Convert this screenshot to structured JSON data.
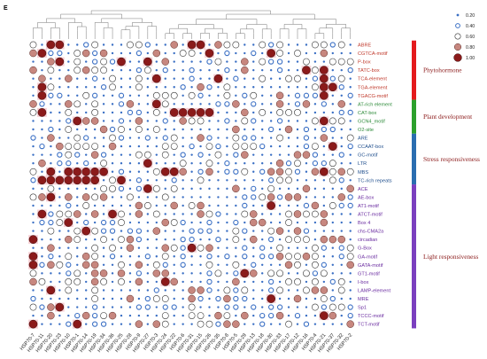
{
  "panel_label": "E",
  "chart_data": {
    "type": "bubble-heatmap",
    "columns": [
      "HSP70-7",
      "HSP70-11",
      "HSP70-20",
      "HSP70-23",
      "HSP70-10",
      "HSP70-1",
      "HSP70-14",
      "HSP70-19",
      "HSP70-34",
      "HSP70-36",
      "HSP70-25",
      "HSP70-28",
      "HSP70-9",
      "HSP70-27",
      "HSP70-3",
      "HSP70-24",
      "HSP70-22",
      "HSP70-6",
      "HSP70-31",
      "HSP70-15",
      "HSP70-26",
      "HSP70-35",
      "HSP70-8",
      "HSP70-5",
      "HSP70-29",
      "HSP70-13",
      "HSP70-18",
      "HSP70-30",
      "HSP70-33",
      "HSP70-17",
      "HSP70-12",
      "HSP70-16",
      "HSP70-4",
      "HSP70-21",
      "HSP70-37",
      "HSP70-32",
      "HSP70-2"
    ],
    "rows": [
      "ABRE",
      "CGTCA-motif",
      "P-box",
      "TATC-box",
      "TCA-element",
      "TGA-element",
      "TGACG-motif",
      "AT-rich element",
      "CAT-box",
      "GCN4_motif",
      "O2-site",
      "ARE",
      "CCAAT-box",
      "GC-motif",
      "LTR",
      "MBS",
      "TC-rich repeats",
      "ACE",
      "AE-box",
      "AT1-motif",
      "ATCT-motif",
      "Box 4",
      "chs-CMA2a",
      "circadian",
      "G-Box",
      "GA-motif",
      "GATA-motif",
      "GT1-motif",
      "I-box",
      "LAMP-element",
      "MRE",
      "Sp1",
      "TCCC-motif",
      "TCT-motif"
    ],
    "row_colors": [
      "#c0392b",
      "#c0392b",
      "#c0392b",
      "#c0392b",
      "#c0392b",
      "#c0392b",
      "#c0392b",
      "#2e8b3a",
      "#2e8b3a",
      "#2e8b3a",
      "#2e8b3a",
      "#1f4e8c",
      "#1f4e8c",
      "#1f4e8c",
      "#1f4e8c",
      "#1f4e8c",
      "#1f4e8c",
      "#6a2ca0",
      "#6a2ca0",
      "#6a2ca0",
      "#6a2ca0",
      "#6a2ca0",
      "#6a2ca0",
      "#6a2ca0",
      "#6a2ca0",
      "#6a2ca0",
      "#6a2ca0",
      "#6a2ca0",
      "#6a2ca0",
      "#6a2ca0",
      "#6a2ca0",
      "#6a2ca0",
      "#6a2ca0",
      "#6a2ca0"
    ],
    "groups": [
      {
        "name": "Phytohormone",
        "start": 0,
        "end": 6,
        "color": "#e41a1c"
      },
      {
        "name": "Plant development",
        "start": 7,
        "end": 10,
        "color": "#2ca02c"
      },
      {
        "name": "Stress responsiveness",
        "start": 11,
        "end": 16,
        "color": "#2a6db0"
      },
      {
        "name": "Light responsiveness",
        "start": 17,
        "end": 33,
        "color": "#7b3fbf"
      }
    ],
    "legend": {
      "position": "top-right",
      "values": [
        0.2,
        0.4,
        0.6,
        0.8,
        1.0
      ],
      "labels": [
        "0.20",
        "0.40",
        "0.60",
        "0.80",
        "1.00"
      ]
    },
    "colors": {
      "low": "#3a6fc4",
      "mid": "#ffffff",
      "high": "#8b1a1a"
    },
    "highlights": [
      {
        "row": "ABRE",
        "cols": [
          "HSP70-20",
          "HSP70-23",
          "HSP70-31",
          "HSP70-15"
        ]
      },
      {
        "row": "CGTCA-motif",
        "cols": [
          "HSP70-11",
          "HSP70-26",
          "HSP70-30"
        ]
      },
      {
        "row": "P-box",
        "cols": [
          "HSP70-23",
          "HSP70-25",
          "HSP70-27"
        ]
      },
      {
        "row": "TATC-box",
        "cols": [
          "HSP70-16",
          "HSP70-21"
        ]
      },
      {
        "row": "TCA-element",
        "cols": [
          "HSP70-3",
          "HSP70-35",
          "HSP70-21"
        ]
      },
      {
        "row": "TGA-element",
        "cols": [
          "HSP70-11",
          "HSP70-21",
          "HSP70-37"
        ]
      },
      {
        "row": "TGACG-motif",
        "cols": [
          "HSP70-11",
          "HSP70-21"
        ]
      },
      {
        "row": "AT-rich element",
        "cols": [
          "HSP70-3"
        ]
      },
      {
        "row": "CAT-box",
        "cols": [
          "HSP70-11",
          "HSP70-22",
          "HSP70-6",
          "HSP70-31",
          "HSP70-15",
          "HSP70-26"
        ]
      },
      {
        "row": "GCN4_motif",
        "cols": [
          "HSP70-1",
          "HSP70-21"
        ]
      },
      {
        "row": "CCAAT-box",
        "cols": [
          "HSP70-37"
        ]
      },
      {
        "row": "LTR",
        "cols": [
          "HSP70-27"
        ]
      },
      {
        "row": "MBS",
        "cols": [
          "HSP70-20",
          "HSP70-10",
          "HSP70-1",
          "HSP70-14",
          "HSP70-19",
          "HSP70-34",
          "HSP70-24",
          "HSP70-22",
          "HSP70-21"
        ]
      },
      {
        "row": "TC-rich repeats",
        "cols": [
          "HSP70-11",
          "HSP70-20",
          "HSP70-23",
          "HSP70-10",
          "HSP70-1",
          "HSP70-14",
          "HSP70-19",
          "HSP70-25"
        ]
      },
      {
        "row": "ACE",
        "cols": [
          "HSP70-27"
        ]
      },
      {
        "row": "AE-box",
        "cols": [
          "HSP70-20"
        ]
      },
      {
        "row": "AT1-motif",
        "cols": [
          "HSP70-30"
        ]
      },
      {
        "row": "ATCT-motif",
        "cols": [
          "HSP70-11",
          "HSP70-36"
        ]
      },
      {
        "row": "Box 4",
        "cols": [
          "HSP70-10"
        ]
      },
      {
        "row": "chs-CMA2a",
        "cols": [
          "HSP70-14"
        ]
      },
      {
        "row": "circadian",
        "cols": [
          "HSP70-7"
        ]
      },
      {
        "row": "G-Box",
        "cols": [
          "HSP70-31"
        ]
      },
      {
        "row": "GA-motif",
        "cols": [
          "HSP70-7"
        ]
      },
      {
        "row": "GATA-motif",
        "cols": [
          "HSP70-7"
        ]
      },
      {
        "row": "GT1-motif",
        "cols": [
          "HSP70-29"
        ]
      },
      {
        "row": "I-box",
        "cols": [
          "HSP70-24"
        ]
      },
      {
        "row": "LAMP-element",
        "cols": [
          "HSP70-20"
        ]
      },
      {
        "row": "MRE",
        "cols": [
          "HSP70-30"
        ]
      },
      {
        "row": "Sp1",
        "cols": [
          "HSP70-23"
        ]
      },
      {
        "row": "TCCC-motif",
        "cols": [
          "HSP70-21"
        ]
      },
      {
        "row": "TCT-motif",
        "cols": [
          "HSP70-7",
          "HSP70-1"
        ]
      }
    ]
  }
}
